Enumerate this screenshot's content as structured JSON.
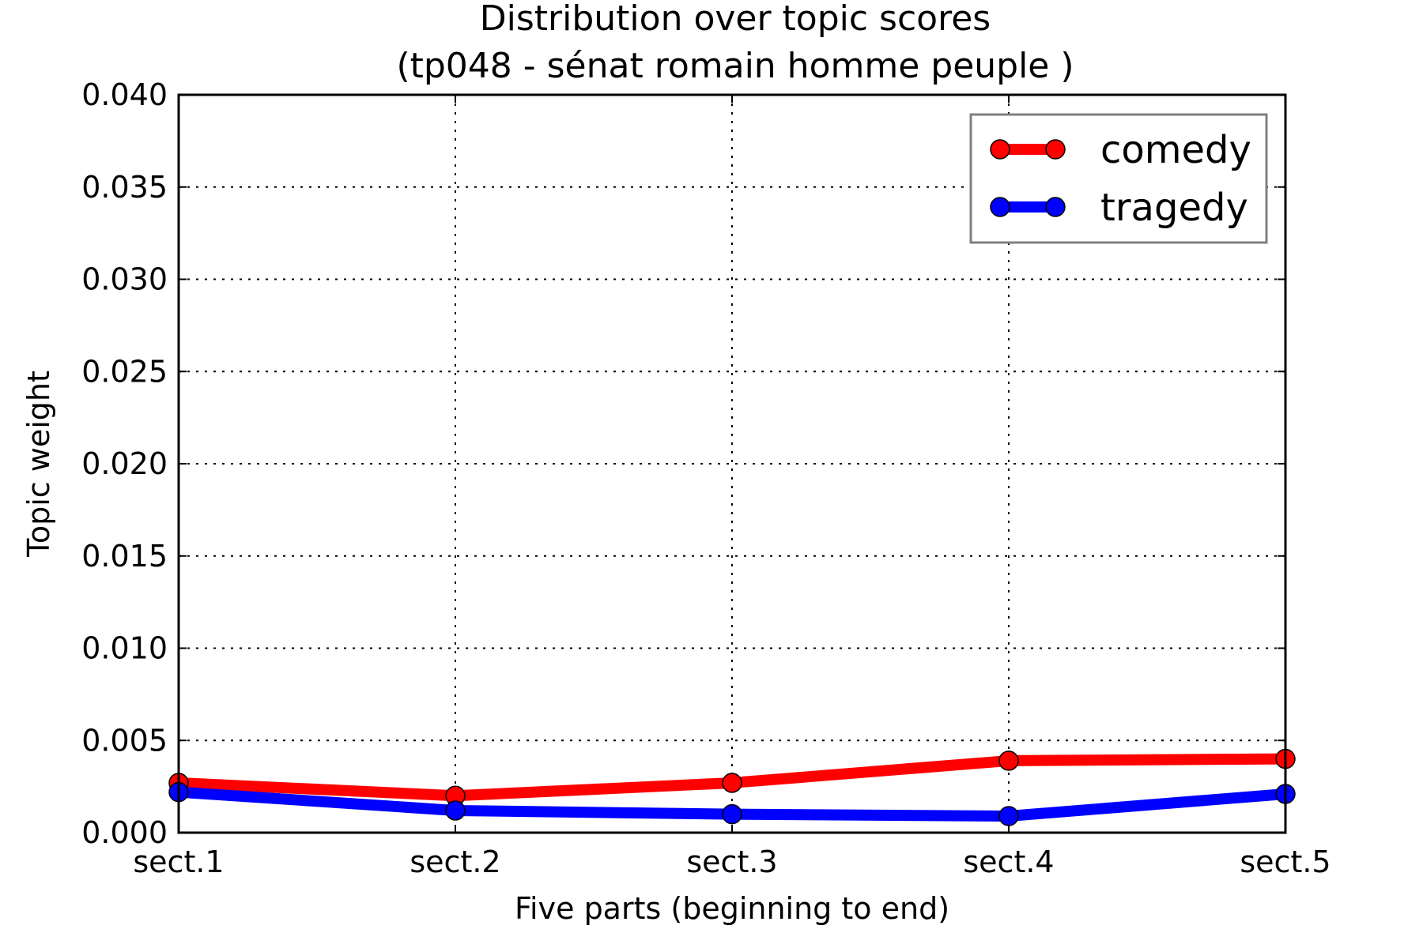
{
  "chart_data": {
    "type": "line",
    "title": "Distribution over topic scores",
    "subtitle": "(tp048 - sénat romain homme peuple )",
    "xlabel": "Five parts (beginning to end)",
    "ylabel": "Topic weight",
    "categories": [
      "sect.1",
      "sect.2",
      "sect.3",
      "sect.4",
      "sect.5"
    ],
    "ylim": [
      0,
      0.04
    ],
    "yticks": [
      "0.000",
      "0.005",
      "0.010",
      "0.015",
      "0.020",
      "0.025",
      "0.030",
      "0.035",
      "0.040"
    ],
    "grid": true,
    "legend_position": "top-right",
    "series": [
      {
        "name": "comedy",
        "color": "#ff0000",
        "values": [
          0.0027,
          0.002,
          0.0027,
          0.0039,
          0.004
        ]
      },
      {
        "name": "tragedy",
        "color": "#0000ff",
        "values": [
          0.0022,
          0.0012,
          0.001,
          0.0009,
          0.0021
        ]
      }
    ]
  }
}
